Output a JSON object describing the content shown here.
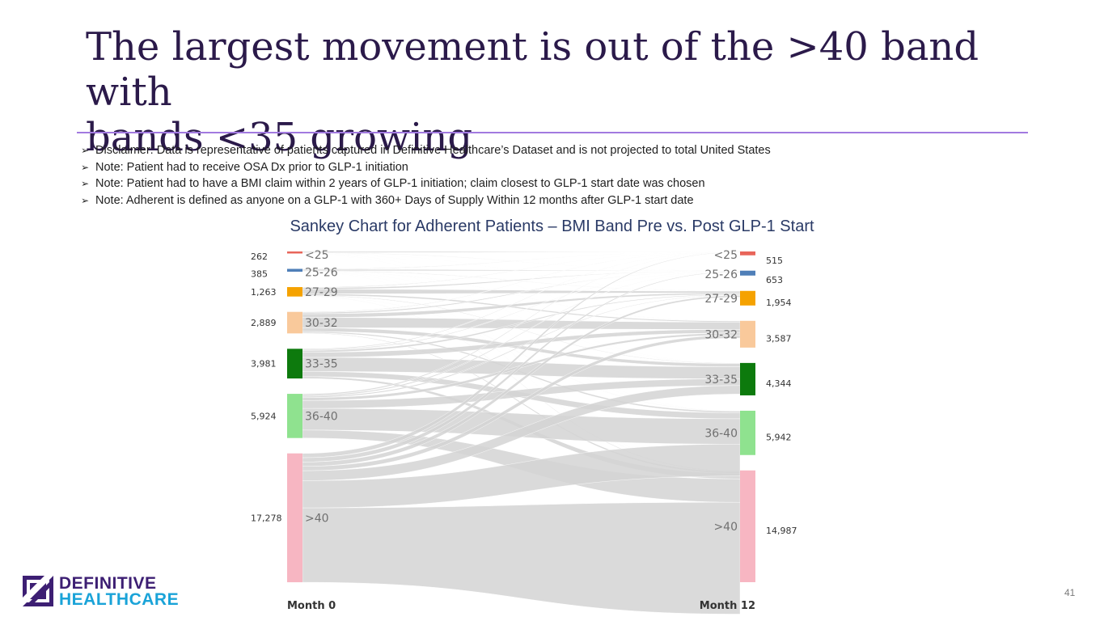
{
  "slide": {
    "title_line1": "The largest movement is out of the >40 band with",
    "title_line2": "bands <35 growing",
    "notes": [
      "Disclaimer: Data is representative of patients captured in Definitive Healthcare’s Dataset and is not projected to total United States",
      "Note: Patient had to receive OSA Dx prior to GLP-1 initiation",
      "Note: Patient had to have a BMI claim within 2 years of GLP-1 initiation; claim closest to GLP-1 start date was chosen",
      "Note: Adherent is defined as anyone on a GLP-1 with 360+ Days of Supply Within 12 months after GLP-1 start date"
    ],
    "page_number": "41",
    "logo": {
      "line1": "DEFINITIVE",
      "line2": "HEALTHCARE"
    }
  },
  "chart_data": {
    "type": "sankey",
    "title": "Sankey Chart for Adherent Patients – BMI Band Pre vs. Post GLP-1 Start",
    "stage_labels": [
      "Month 0",
      "Month 12"
    ],
    "bands": [
      "<25",
      "25-26",
      "27-29",
      "30-32",
      "33-35",
      "36-40",
      ">40"
    ],
    "colors": {
      "<25": "#e8655a",
      "25-26": "#4f7fb8",
      "27-29": "#f5a200",
      "30-32": "#f9c99b",
      "33-35": "#0d7a0d",
      "36-40": "#8fe28f",
      ">40": "#f7b6c2",
      "link": "#d3d3d3"
    },
    "month0": {
      "<25": "262",
      "25-26": "385",
      "27-29": "1,263",
      "30-32": "2,889",
      "33-35": "3,981",
      "36-40": "5,924",
      ">40": "17,278"
    },
    "month12": {
      "<25": "515",
      "25-26": "653",
      "27-29": "1,954",
      "30-32": "3,587",
      "33-35": "4,344",
      "36-40": "5,942",
      ">40": "14,987"
    }
  }
}
